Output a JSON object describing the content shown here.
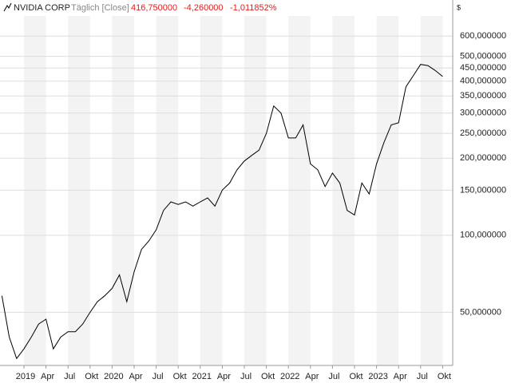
{
  "chart_data": {
    "type": "line",
    "title": "NVIDIA CORP",
    "interval": "Täglich [Close]",
    "last": "416,750000",
    "change": "-4,260000",
    "change_pct": "-1,011852%",
    "currency": "$",
    "log_scale": true,
    "grid": true,
    "x": [
      "2018-10",
      "2018-11",
      "2018-12",
      "2019-01",
      "2019-02",
      "2019-03",
      "2019-04",
      "2019-05",
      "2019-06",
      "2019-07",
      "2019-08",
      "2019-09",
      "2019-10",
      "2019-11",
      "2019-12",
      "2020-01",
      "2020-02",
      "2020-03",
      "2020-04",
      "2020-05",
      "2020-06",
      "2020-07",
      "2020-08",
      "2020-09",
      "2020-10",
      "2020-11",
      "2020-12",
      "2021-01",
      "2021-02",
      "2021-03",
      "2021-04",
      "2021-05",
      "2021-06",
      "2021-07",
      "2021-08",
      "2021-09",
      "2021-10",
      "2021-11",
      "2021-12",
      "2022-01",
      "2022-02",
      "2022-03",
      "2022-04",
      "2022-05",
      "2022-06",
      "2022-07",
      "2022-08",
      "2022-09",
      "2022-10",
      "2022-11",
      "2022-12",
      "2023-01",
      "2023-02",
      "2023-03",
      "2023-04",
      "2023-05",
      "2023-06",
      "2023-07",
      "2023-08",
      "2023-09",
      "2023-10"
    ],
    "series": [
      {
        "name": "NVIDIA CORP",
        "color": "#000000",
        "values": [
          58,
          40,
          33,
          36,
          40,
          45,
          47,
          36,
          40,
          42,
          42,
          45,
          50,
          55,
          58,
          62,
          70,
          55,
          72,
          88,
          95,
          105,
          125,
          135,
          132,
          135,
          130,
          135,
          140,
          130,
          150,
          160,
          180,
          195,
          205,
          215,
          250,
          320,
          300,
          240,
          240,
          270,
          190,
          180,
          155,
          175,
          160,
          125,
          120,
          160,
          145,
          190,
          230,
          270,
          275,
          380,
          420,
          465,
          460,
          440,
          417
        ]
      }
    ],
    "ylim": [
      31,
      830
    ],
    "yticks": [
      {
        "value": 50,
        "label": "50,000000"
      },
      {
        "value": 100,
        "label": "100,000000"
      },
      {
        "value": 150,
        "label": "150,000000"
      },
      {
        "value": 200,
        "label": "200,000000"
      },
      {
        "value": 250,
        "label": "250,000000"
      },
      {
        "value": 300,
        "label": "300,000000"
      },
      {
        "value": 350,
        "label": "350,000000"
      },
      {
        "value": 400,
        "label": "400,000000"
      },
      {
        "value": 450,
        "label": "450,000000"
      },
      {
        "value": 500,
        "label": "500,000000"
      },
      {
        "value": 600,
        "label": "600,000000"
      }
    ],
    "xticks": [
      {
        "value": "2019-01",
        "label": "2019"
      },
      {
        "value": "2019-04",
        "label": "Apr"
      },
      {
        "value": "2019-07",
        "label": "Jul"
      },
      {
        "value": "2019-10",
        "label": "Okt"
      },
      {
        "value": "2020-01",
        "label": "2020"
      },
      {
        "value": "2020-04",
        "label": "Apr"
      },
      {
        "value": "2020-07",
        "label": "Jul"
      },
      {
        "value": "2020-10",
        "label": "Okt"
      },
      {
        "value": "2021-01",
        "label": "2021"
      },
      {
        "value": "2021-04",
        "label": "Apr"
      },
      {
        "value": "2021-07",
        "label": "Jul"
      },
      {
        "value": "2021-10",
        "label": "Okt"
      },
      {
        "value": "2022-01",
        "label": "2022"
      },
      {
        "value": "2022-04",
        "label": "Apr"
      },
      {
        "value": "2022-07",
        "label": "Jul"
      },
      {
        "value": "2022-10",
        "label": "Okt"
      },
      {
        "value": "2023-01",
        "label": "2023"
      },
      {
        "value": "2023-04",
        "label": "Apr"
      },
      {
        "value": "2023-07",
        "label": "Jul"
      },
      {
        "value": "2023-10",
        "label": "Okt"
      }
    ]
  }
}
